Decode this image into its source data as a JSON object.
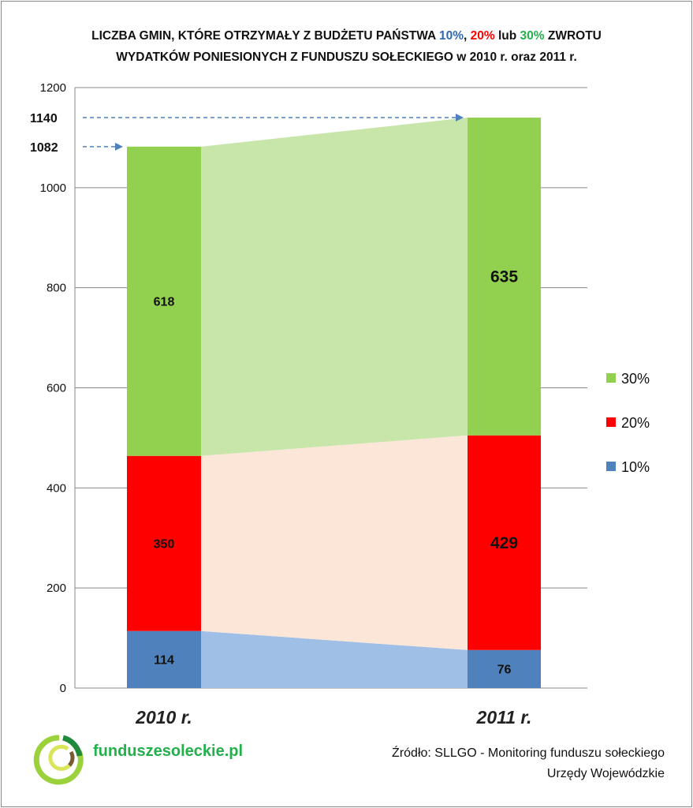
{
  "chart_data": {
    "type": "bar",
    "stacked": true,
    "title_parts": [
      {
        "text": "LICZBA GMIN, KTÓRE OTRZYMAŁY Z BUDŻETU PAŃSTWA ",
        "color": "#111111"
      },
      {
        "text": "10%",
        "color": "#2e6ab3"
      },
      {
        "text": ", ",
        "color": "#111111"
      },
      {
        "text": "20%",
        "color": "#ff0000"
      },
      {
        "text": " lub ",
        "color": "#111111"
      },
      {
        "text": "30%",
        "color": "#22b04b"
      },
      {
        "text": " ZWROTU",
        "color": "#111111"
      }
    ],
    "title_line2": "WYDATKÓW PONIESIONYCH Z FUNDUSZU SOŁECKIEGO w 2010 r. oraz 2011 r.",
    "categories": [
      "2010 r.",
      "2011 r."
    ],
    "series": [
      {
        "name": "10%",
        "values": [
          114,
          76
        ],
        "color": "#4f81bd",
        "band_color": "#a0bfe6"
      },
      {
        "name": "20%",
        "values": [
          350,
          429
        ],
        "color": "#ff0000",
        "band_color": "#fce6d8"
      },
      {
        "name": "30%",
        "values": [
          618,
          635
        ],
        "color": "#92d050",
        "band_color": "#c9e6aa"
      }
    ],
    "totals": [
      1082,
      1140
    ],
    "ylim": [
      0,
      1200
    ],
    "yticks": [
      0,
      200,
      400,
      600,
      800,
      1000,
      1200
    ],
    "grid": true,
    "legend": "right"
  },
  "footer": {
    "logo_text": "funduszesoleckie.pl",
    "source_line1": "Źródło: SLLGO - Monitoring funduszu sołeckiego",
    "source_line2": "Urzędy Wojewódzkie"
  }
}
